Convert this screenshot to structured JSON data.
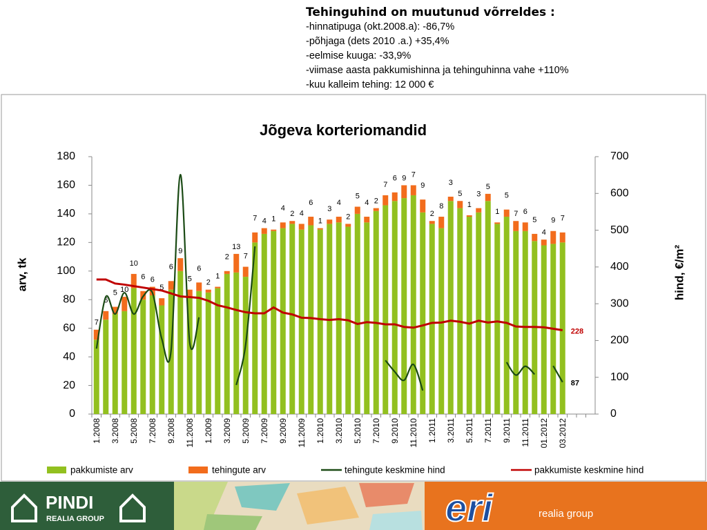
{
  "header": {
    "title": "Tehinguhind on muutunud võrreldes :",
    "lines": [
      "-hinnatipuga (okt.2008.a): -86,7%",
      "-põhjaga (dets 2010 .a.) +35,4%",
      "-eelmise kuuga: -33,9%",
      "-viimase aasta pakkumishinna ja tehinguhinna vahe +110%",
      "-kuu kalleim tehing: 12 000 €"
    ]
  },
  "chart_data": {
    "type": "bar",
    "stacked": true,
    "title": "Jõgeva korteriomandid",
    "y_label": "arv, tk",
    "y2_label": "hind, €/m²",
    "categories": [
      "1.2008",
      null,
      "3.2008",
      null,
      "5.2008",
      null,
      "7.2008",
      null,
      "9.2008",
      null,
      "11.2008",
      null,
      "1.2009",
      null,
      "3.2009",
      null,
      "5.2009",
      null,
      "7.2009",
      null,
      "9.2009",
      null,
      "11.2009",
      null,
      "1.2010",
      null,
      "3.2010",
      null,
      "5.2010",
      null,
      "7.2010",
      null,
      "9.2010",
      null,
      "11.2010",
      null,
      "1.2011",
      null,
      "3.2011",
      null,
      "5.2011",
      null,
      "7.2011",
      null,
      "9.2011",
      null,
      "11.2011",
      null,
      "01.2012",
      null,
      "03.2012",
      null,
      null,
      null
    ],
    "ylim": [
      0,
      180
    ],
    "yticks": [
      0,
      20,
      40,
      60,
      80,
      100,
      120,
      140,
      160,
      180
    ],
    "y2lim": [
      0,
      700
    ],
    "y2ticks": [
      0,
      100,
      200,
      300,
      400,
      500,
      600,
      700
    ],
    "legend": "bottom",
    "series": [
      {
        "name": "pakkumiste arv",
        "kind": "bar",
        "color": "#92c01f",
        "values": [
          52,
          66,
          70,
          72,
          88,
          80,
          83,
          76,
          87,
          100,
          82,
          86,
          85,
          88,
          98,
          99,
          96,
          120,
          126,
          128,
          130,
          133,
          129,
          132,
          129,
          133,
          134,
          131,
          140,
          134,
          142,
          146,
          149,
          151,
          153,
          141,
          133,
          130,
          149,
          144,
          138,
          141,
          149,
          133,
          138,
          128,
          128,
          121,
          118,
          119,
          120,
          null,
          null,
          null
        ]
      },
      {
        "name": "tehingute arv",
        "kind": "bar",
        "color": "#f26c1c",
        "values": [
          7,
          6,
          5,
          10,
          10,
          6,
          6,
          5,
          6,
          9,
          5,
          6,
          2,
          1,
          2,
          13,
          7,
          7,
          4,
          1,
          4,
          2,
          4,
          6,
          1,
          3,
          4,
          2,
          5,
          4,
          2,
          7,
          6,
          9,
          7,
          9,
          2,
          8,
          3,
          5,
          1,
          3,
          5,
          1,
          5,
          7,
          6,
          5,
          4,
          9,
          7,
          null,
          null,
          null
        ]
      },
      {
        "name": "tehingute keskmine hind",
        "kind": "line",
        "axis": "y2",
        "color": "#1a4a14",
        "values": [
          178,
          319,
          272,
          330,
          272,
          320,
          330,
          205,
          172,
          651,
          195,
          263,
          null,
          null,
          null,
          79,
          188,
          456,
          null,
          null,
          null,
          null,
          null,
          null,
          null,
          null,
          null,
          null,
          null,
          null,
          null,
          146,
          115,
          92,
          135,
          64,
          null,
          null,
          null,
          null,
          null,
          null,
          null,
          null,
          141,
          106,
          130,
          108,
          null,
          131,
          87,
          null,
          null,
          null
        ]
      },
      {
        "name": "pakkumiste keskmine hind",
        "kind": "line",
        "axis": "y2",
        "color": "#c00000",
        "values": [
          366,
          366,
          355,
          352,
          348,
          344,
          340,
          336,
          328,
          320,
          318,
          316,
          308,
          296,
          290,
          283,
          277,
          274,
          274,
          290,
          276,
          271,
          262,
          261,
          258,
          256,
          258,
          255,
          245,
          250,
          248,
          244,
          244,
          237,
          235,
          241,
          248,
          249,
          254,
          251,
          246,
          254,
          249,
          252,
          248,
          238,
          237,
          237,
          236,
          232,
          228,
          null,
          null,
          null
        ]
      }
    ]
  },
  "footer": {
    "brand": "PINDI",
    "brand_sub": "REALIA GROUP",
    "logo": "eri",
    "logo_sub": "realia group"
  }
}
